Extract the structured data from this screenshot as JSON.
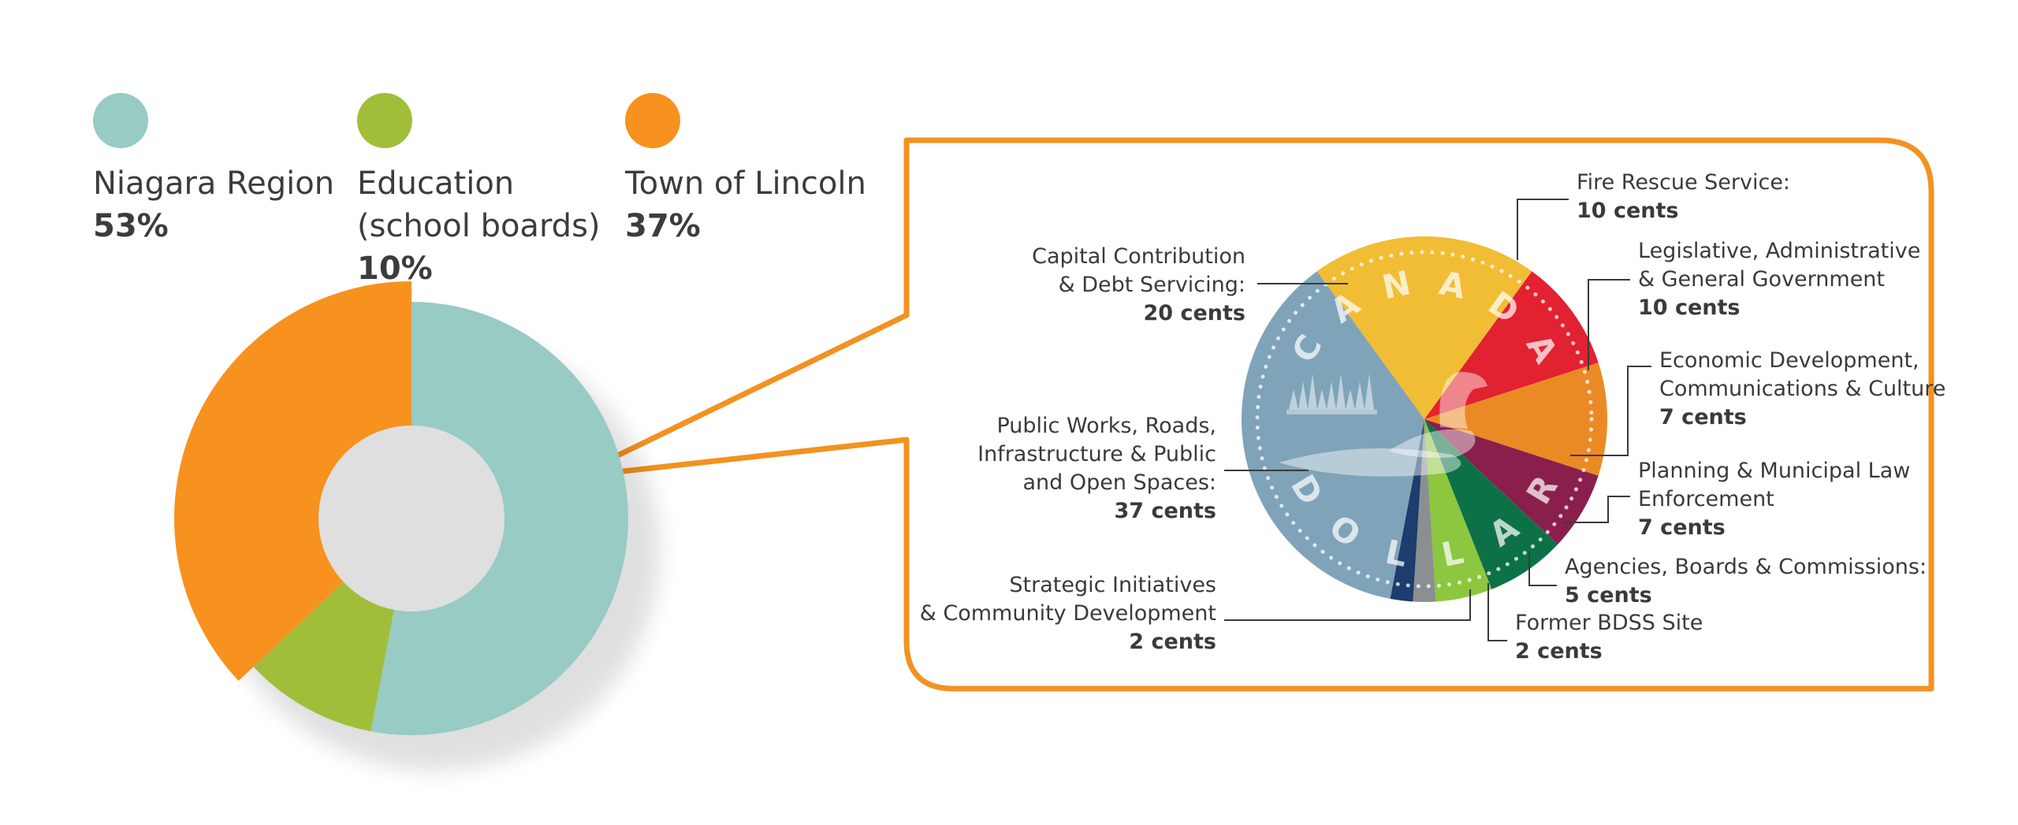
{
  "legend": [
    {
      "name_lines": [
        "Niagara Region"
      ],
      "pct": "53%",
      "color": "#97cbc4"
    },
    {
      "name_lines": [
        "Education",
        "(school boards)"
      ],
      "pct": "10%",
      "color": "#a1be3b"
    },
    {
      "name_lines": [
        "Town of Lincoln"
      ],
      "pct": "37%",
      "color": "#f7921e"
    }
  ],
  "coin": {
    "text_top": "CANADA",
    "text_bottom": "DOLLAR"
  },
  "chart_data": [
    {
      "type": "pie",
      "style": "donut",
      "categories": [
        "Niagara Region",
        "Education (school boards)",
        "Town of Lincoln"
      ],
      "values": [
        53,
        10,
        37
      ],
      "unit": "%",
      "colors": [
        "#97cbc4",
        "#a1be3b",
        "#f7921e"
      ],
      "exploded": "Town of Lincoln"
    },
    {
      "type": "pie",
      "unit": "cents",
      "slices": [
        {
          "key": "capital",
          "label_lines": [
            "Capital Contribution",
            "& Debt Servicing:"
          ],
          "value_text": "20 cents",
          "value": 20,
          "color": "#f1bd34"
        },
        {
          "key": "fire",
          "label_lines": [
            "Fire Rescue Service:"
          ],
          "value_text": "10 cents",
          "value": 10,
          "color": "#e22131"
        },
        {
          "key": "legislative",
          "label_lines": [
            "Legislative, Administrative",
            "& General Government"
          ],
          "value_text": "10 cents",
          "value": 10,
          "color": "#eb8a25"
        },
        {
          "key": "economic",
          "label_lines": [
            "Economic Development,",
            "Communications & Culture"
          ],
          "value_text": "7 cents",
          "value": 7,
          "color": "#8a1f4c"
        },
        {
          "key": "planning",
          "label_lines": [
            "Planning & Municipal Law",
            "Enforcement"
          ],
          "value_text": "7 cents",
          "value": 7,
          "color": "#0d7148"
        },
        {
          "key": "agencies",
          "label_lines": [
            "Agencies, Boards & Commissions:"
          ],
          "value_text": "5 cents",
          "value": 5,
          "color": "#8dc63f"
        },
        {
          "key": "bdss",
          "label_lines": [
            "Former BDSS Site"
          ],
          "value_text": "2 cents",
          "value": 2,
          "color": "#8b8f92"
        },
        {
          "key": "strategic",
          "label_lines": [
            "Strategic Initiatives",
            "& Community Development"
          ],
          "value_text": "2 cents",
          "value": 2,
          "color": "#1d3d6e"
        },
        {
          "key": "publicworks",
          "label_lines": [
            "Public Works, Roads,",
            "Infrastructure & Public",
            "and Open Spaces:"
          ],
          "value_text": "37 cents",
          "value": 37,
          "color": "#7fa3b8"
        }
      ]
    }
  ]
}
